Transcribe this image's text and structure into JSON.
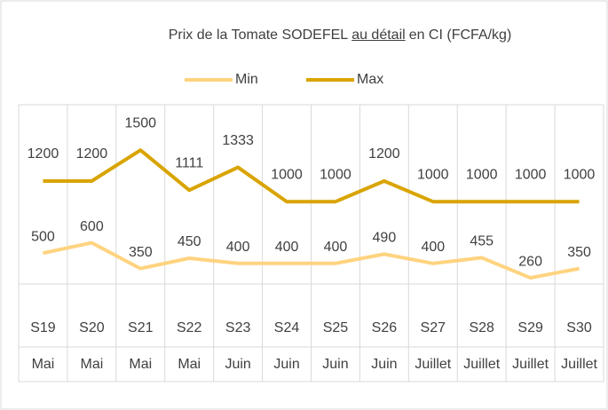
{
  "chart_data": {
    "type": "line",
    "title": [
      "Prix de la Tomate SODEFEL",
      "au détail",
      "en CI (FCFA/kg)"
    ],
    "categories": [
      "S19",
      "S20",
      "S21",
      "S22",
      "S23",
      "S24",
      "S25",
      "S26",
      "S27",
      "S28",
      "S29",
      "S30"
    ],
    "months": [
      "Mai",
      "Mai",
      "Mai",
      "Mai",
      "Juin",
      "Juin",
      "Juin",
      "Juin",
      "Juillet",
      "Juillet",
      "Juillet",
      "Juillet"
    ],
    "series": [
      {
        "name": "Min",
        "color": "#ffd37f",
        "values": [
          500,
          600,
          350,
          450,
          400,
          400,
          400,
          490,
          400,
          455,
          260,
          350
        ]
      },
      {
        "name": "Max",
        "color": "#d9a400",
        "values": [
          1200,
          1200,
          1500,
          1111,
          1333,
          1000,
          1000,
          1200,
          1000,
          1000,
          1000,
          1000
        ]
      }
    ],
    "ylim": [
      200,
      1950
    ],
    "legend": "top"
  }
}
